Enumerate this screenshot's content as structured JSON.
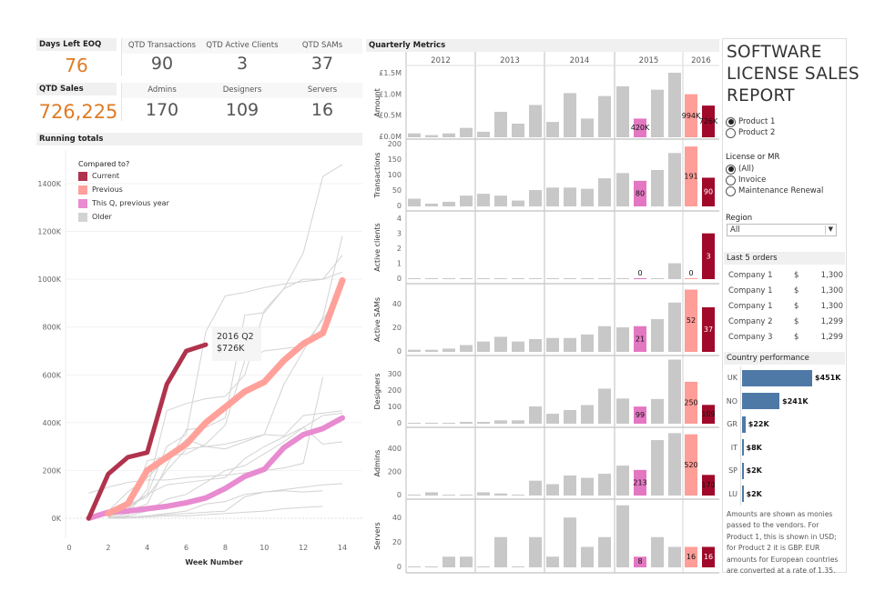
{
  "kpis": {
    "days_left": {
      "label": "Days Left EOQ",
      "value": "76"
    },
    "qtd_sales": {
      "label": "QTD Sales",
      "value": "726,225"
    },
    "row1": [
      {
        "label": "QTD Transactions",
        "value": "90"
      },
      {
        "label": "QTD Active Clients",
        "value": "3"
      },
      {
        "label": "QTD SAMs",
        "value": "37"
      }
    ],
    "row2": [
      {
        "label": "Admins",
        "value": "170"
      },
      {
        "label": "Designers",
        "value": "109"
      },
      {
        "label": "Servers",
        "value": "16"
      }
    ],
    "accent": "#e07b24"
  },
  "running": {
    "title": "Running totals",
    "legend_title": "Compared to?",
    "tooltip": {
      "line1": "2016 Q2",
      "line2": "$726K"
    },
    "chart_data": {
      "type": "line",
      "xlabel": "Week Number",
      "ylabel": "",
      "xlim": [
        0,
        14.5
      ],
      "ylim": [
        -100,
        1500
      ],
      "xticks": [
        "0",
        "2",
        "4",
        "6",
        "8",
        "10",
        "12",
        "14"
      ],
      "yticks": [
        "0K",
        "200K",
        "400K",
        "600K",
        "800K",
        "1000K",
        "1200K",
        "1400K"
      ],
      "legend": "top-left",
      "series": [
        {
          "name": "Current",
          "color": "#b0334d",
          "x": [
            1,
            2,
            3,
            4,
            5,
            6,
            7
          ],
          "y": [
            0,
            185,
            255,
            275,
            560,
            700,
            726
          ]
        },
        {
          "name": "Previous",
          "color": "#ffa19a",
          "x": [
            2,
            3,
            4,
            5,
            6,
            7,
            8,
            9,
            10,
            11,
            12,
            13,
            14
          ],
          "y": [
            20,
            60,
            200,
            255,
            310,
            400,
            465,
            530,
            570,
            660,
            730,
            775,
            995
          ]
        },
        {
          "name": "This Q, previous year",
          "color": "#e88bd0",
          "x": [
            1,
            2,
            3,
            4,
            5,
            6,
            7,
            8,
            9,
            10,
            11,
            12,
            13,
            14
          ],
          "y": [
            0,
            25,
            30,
            40,
            50,
            65,
            85,
            125,
            175,
            205,
            295,
            350,
            375,
            420
          ]
        },
        {
          "name": "Older",
          "color": "#d3d3d3",
          "lines": [
            {
              "x": [
                2,
                3,
                4,
                5,
                6,
                7,
                8,
                9,
                10,
                11,
                12,
                13,
                14
              ],
              "y": [
                10,
                40,
                100,
                300,
                350,
                780,
                930,
                945,
                965,
                980,
                990,
                1000,
                1030
              ]
            },
            {
              "x": [
                2,
                3,
                4,
                5,
                6,
                7,
                8,
                9,
                10,
                11,
                12,
                13,
                14
              ],
              "y": [
                5,
                30,
                60,
                220,
                370,
                380,
                420,
                850,
                860,
                960,
                1110,
                1430,
                1480
              ]
            },
            {
              "x": [
                2,
                3,
                4,
                5,
                6,
                7,
                8,
                9,
                10,
                11,
                12,
                13,
                14
              ],
              "y": [
                0,
                20,
                120,
                450,
                480,
                500,
                510,
                600,
                870,
                960,
                1000,
                1000,
                1100
              ]
            },
            {
              "x": [
                2,
                3,
                4,
                5,
                6,
                7,
                8,
                9,
                10,
                11,
                12,
                13,
                14
              ],
              "y": [
                0,
                50,
                90,
                200,
                290,
                300,
                310,
                330,
                350,
                560,
                700,
                840,
                1180
              ]
            },
            {
              "x": [
                2,
                3,
                4,
                5,
                6,
                7,
                8,
                9,
                10,
                11,
                12,
                13,
                14
              ],
              "y": [
                0,
                10,
                240,
                260,
                270,
                310,
                390,
                660,
                700,
                710,
                720,
                830,
                960
              ]
            },
            {
              "x": [
                2,
                3,
                4,
                5,
                6,
                7,
                8,
                9,
                10,
                11,
                12,
                13,
                14
              ],
              "y": [
                30,
                110,
                170,
                250,
                330,
                300,
                290,
                320,
                350,
                345,
                430,
                440,
                450
              ]
            },
            {
              "x": [
                1,
                2,
                3,
                4,
                5,
                6,
                7,
                8,
                9,
                10,
                11,
                12,
                13
              ],
              "y": [
                105,
                130,
                150,
                160,
                160,
                170,
                175,
                180,
                190,
                200,
                210,
                230,
                590
              ]
            },
            {
              "x": [
                2,
                3,
                4,
                5,
                6,
                7,
                8,
                9,
                10,
                11,
                12,
                13,
                14
              ],
              "y": [
                0,
                50,
                100,
                140,
                150,
                160,
                170,
                250,
                300,
                340,
                380,
                430,
                440
              ]
            },
            {
              "x": [
                2,
                3,
                4,
                5,
                6,
                7,
                8,
                9,
                10,
                11,
                12,
                13,
                14
              ],
              "y": [
                0,
                5,
                10,
                20,
                30,
                60,
                70,
                100,
                110,
                120,
                130,
                140,
                145
              ]
            },
            {
              "x": [
                2,
                3,
                4,
                5,
                6,
                7,
                8,
                9,
                10,
                11,
                12,
                13
              ],
              "y": [
                0,
                5,
                10,
                15,
                20,
                25,
                30,
                90,
                110,
                115,
                110,
                115
              ]
            },
            {
              "x": [
                2,
                3,
                4,
                5,
                6,
                7,
                8,
                9,
                10,
                11,
                12,
                13
              ],
              "y": [
                0,
                0,
                5,
                10,
                10,
                15,
                20,
                25,
                30,
                40,
                45,
                50
              ]
            },
            {
              "x": [
                2,
                3,
                4,
                5,
                6,
                7,
                8,
                9,
                10,
                11,
                12,
                13,
                14
              ],
              "y": [
                0,
                10,
                30,
                80,
                100,
                150,
                200,
                220,
                270,
                320,
                380,
                310,
                320
              ]
            }
          ]
        }
      ]
    }
  },
  "quarterly": {
    "title": "Quarterly Metrics",
    "chart_data": {
      "type": "bar",
      "years": [
        "2012",
        "2013",
        "2014",
        "2015",
        "2016"
      ],
      "colors": {
        "older": "#c8c8c8",
        "this_q_prev_year": "#e377c2",
        "previous": "#ff9d98",
        "current": "#a0092a"
      },
      "panels": [
        {
          "name": "Amount",
          "ticks": [
            "£0.0M",
            "£0.5M",
            "£1.0M",
            "£1.5M"
          ],
          "tick_values": [
            0,
            0.5,
            1.0,
            1.5
          ],
          "values": [
            0.07,
            0.03,
            0.07,
            0.2,
            0.11,
            0.58,
            0.3,
            0.74,
            0.34,
            1.02,
            0.42,
            0.95,
            1.18,
            0.42,
            1.1,
            1.5,
            0.994,
            0.726
          ],
          "labels": {
            "13": "420K",
            "16": "994K",
            "17": "726K"
          }
        },
        {
          "name": "Transactions",
          "ticks": [
            "0",
            "50",
            "100",
            "150",
            "200"
          ],
          "tick_values": [
            0,
            50,
            100,
            150,
            200
          ],
          "values": [
            22,
            6,
            12,
            32,
            38,
            32,
            16,
            50,
            58,
            58,
            54,
            88,
            105,
            80,
            115,
            170,
            191,
            90
          ],
          "labels": {
            "13": "80",
            "16": "191",
            "17": "90"
          }
        },
        {
          "name": "Active clients",
          "ticks": [
            "0",
            "1",
            "2",
            "3",
            "4"
          ],
          "tick_values": [
            0,
            1,
            2,
            3,
            4
          ],
          "values": [
            0,
            0,
            0,
            0,
            0,
            0,
            0,
            0,
            0,
            0,
            0,
            0,
            0,
            0,
            0,
            1,
            0,
            3
          ],
          "labels": {
            "13": "0",
            "16": "0",
            "17": "3"
          }
        },
        {
          "name": "Active SAMs",
          "ticks": [
            "0",
            "20",
            "40"
          ],
          "tick_values": [
            0,
            20,
            40
          ],
          "values": [
            1,
            1,
            2,
            5,
            8,
            12,
            8,
            10,
            11,
            11,
            14,
            21,
            20,
            21,
            27,
            41,
            52,
            37
          ],
          "labels": {
            "13": "21",
            "16": "52",
            "17": "37"
          }
        },
        {
          "name": "Designers",
          "ticks": [
            "0",
            "100",
            "200",
            "300"
          ],
          "tick_values": [
            0,
            100,
            200,
            300
          ],
          "values": [
            0,
            0,
            0,
            5,
            5,
            15,
            15,
            100,
            55,
            78,
            108,
            208,
            148,
            99,
            145,
            385,
            250,
            109
          ],
          "labels": {
            "13": "99",
            "16": "250",
            "17": "109"
          }
        },
        {
          "name": "Admins",
          "ticks": [
            "0",
            "200",
            "400"
          ],
          "tick_values": [
            0,
            200,
            400
          ],
          "values": [
            0,
            20,
            0,
            0,
            20,
            10,
            0,
            120,
            90,
            165,
            145,
            180,
            250,
            213,
            470,
            530,
            520,
            170
          ],
          "labels": {
            "13": "213",
            "16": "520",
            "17": "170"
          }
        },
        {
          "name": "Servers",
          "ticks": [
            "0",
            "20",
            "40"
          ],
          "tick_values": [
            0,
            20,
            40
          ],
          "values": [
            0,
            0,
            8,
            8,
            0,
            24,
            0,
            24,
            8,
            40,
            16,
            24,
            50,
            8,
            24,
            16,
            16,
            16
          ],
          "labels": {
            "13": "8",
            "16": "16",
            "17": "16"
          }
        }
      ]
    }
  },
  "sidebar": {
    "title_lines": [
      "SOFTWARE",
      "LICENSE SALES",
      "REPORT"
    ],
    "products": [
      {
        "label": "Product 1",
        "selected": true
      },
      {
        "label": "Product 2",
        "selected": false
      }
    ],
    "license_label": "License or MR",
    "license_options": [
      {
        "label": "(All)",
        "selected": true
      },
      {
        "label": "Invoice",
        "selected": false
      },
      {
        "label": "Maintenance Renewal",
        "selected": false
      }
    ],
    "region_label": "Region",
    "region_value": "All",
    "orders_title": "Last 5 orders",
    "orders": [
      {
        "company": "Company 1",
        "currency": "$",
        "amount": "1,300"
      },
      {
        "company": "Company 1",
        "currency": "$",
        "amount": "1,300"
      },
      {
        "company": "Company 1",
        "currency": "$",
        "amount": "1,300"
      },
      {
        "company": "Company 2",
        "currency": "$",
        "amount": "1,299"
      },
      {
        "company": "Company 3",
        "currency": "$",
        "amount": "1,299"
      }
    ],
    "country_title": "Country performance",
    "countries": [
      {
        "code": "UK",
        "value": 451,
        "label": "$451K"
      },
      {
        "code": "NO",
        "value": 241,
        "label": "$241K"
      },
      {
        "code": "GR",
        "value": 22,
        "label": "$22K"
      },
      {
        "code": "IT",
        "value": 8,
        "label": "$8K"
      },
      {
        "code": "SP",
        "value": 2,
        "label": "$2K"
      },
      {
        "code": "LU",
        "value": 2,
        "label": "$2K"
      }
    ],
    "country_color": "#4e79a7",
    "note": "Amounts are shown as monies passed to the vendors.  For Product 1, this is shown in USD; for Product 2 it is GBP.  EUR amounts for European countries are converted at a rate of 1.35."
  }
}
